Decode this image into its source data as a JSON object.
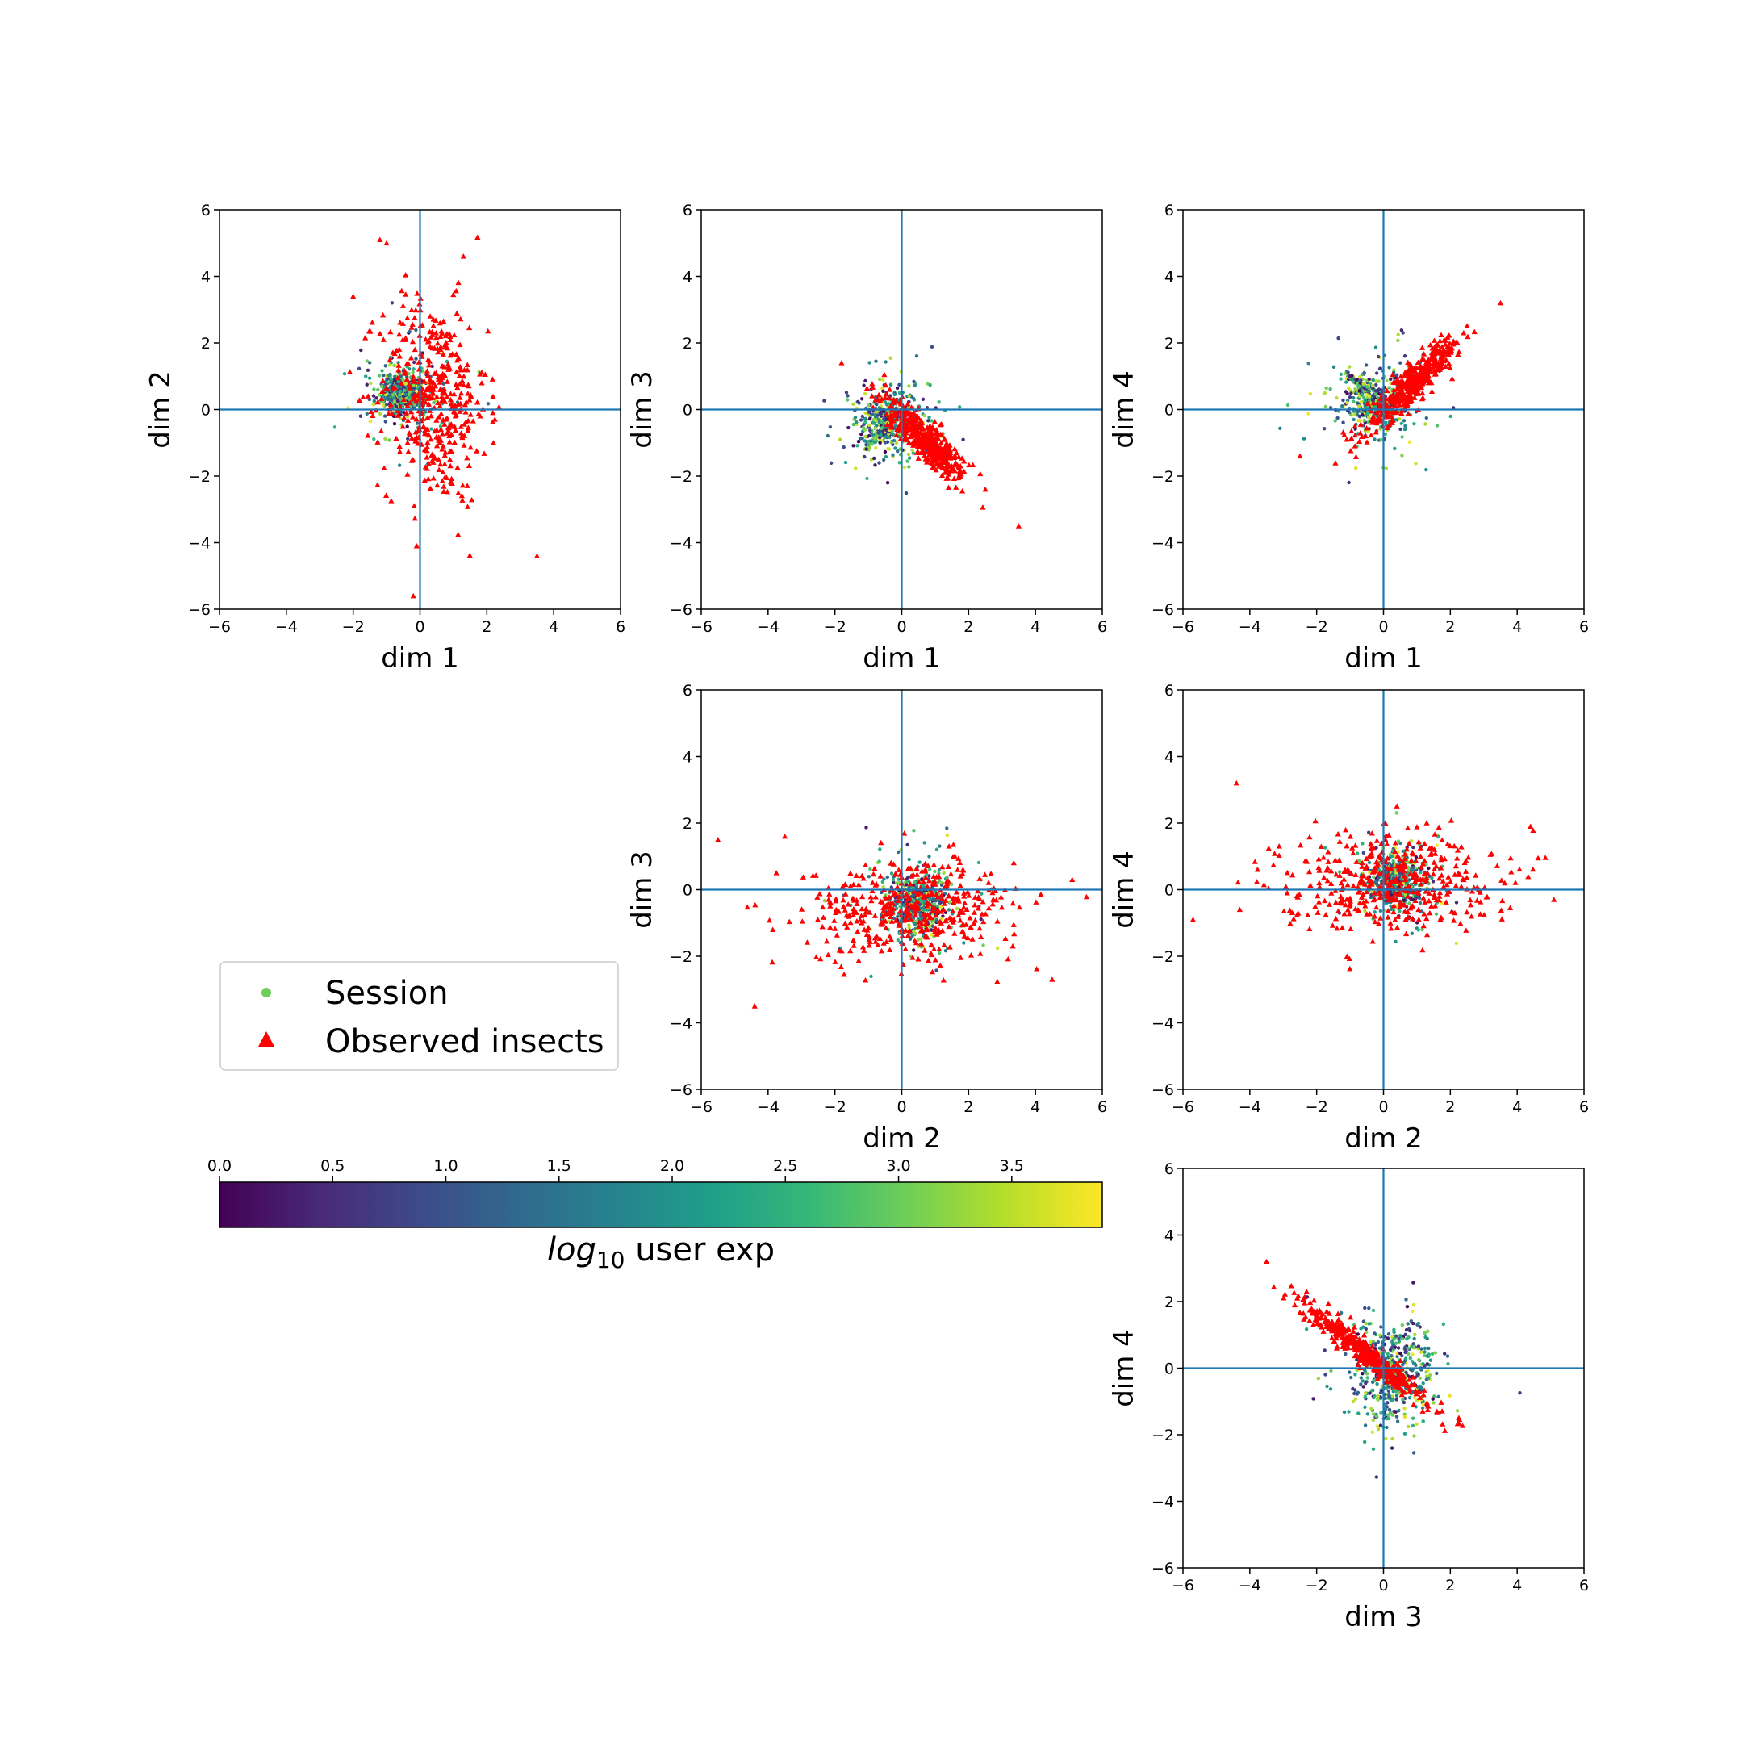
{
  "colors": {
    "zero_line": "#1f77b4",
    "observed_insects": "#ff0000",
    "viridis_stops": [
      "#440154",
      "#482878",
      "#3e4989",
      "#31688e",
      "#26828e",
      "#1f9e89",
      "#35b779",
      "#6ece58",
      "#b5de2b",
      "#fde725"
    ]
  },
  "legend": {
    "placement": "left, below top-left panel",
    "entries": [
      {
        "label": "Session",
        "marker": "circle",
        "color": "#6ece58"
      },
      {
        "label": "Observed insects",
        "marker": "triangle",
        "color": "#ff0000"
      }
    ]
  },
  "colorbar": {
    "label_math": "log",
    "label_sub": "10",
    "label_rest": " user exp",
    "ticks": [
      "0.0",
      "0.5",
      "1.0",
      "1.5",
      "2.0",
      "2.5",
      "3.0",
      "3.5"
    ],
    "range": [
      0,
      3.9
    ],
    "orientation": "horizontal"
  },
  "chart_data": [
    {
      "type": "scatter",
      "xlabel": "dim 1",
      "ylabel": "dim 2",
      "xlim": [
        -6,
        6
      ],
      "ylim": [
        -6,
        6
      ],
      "xticks": [
        "−6",
        "−4",
        "−2",
        "0",
        "2",
        "4",
        "6"
      ],
      "yticks": [
        "−6",
        "−4",
        "−2",
        "0",
        "2",
        "4",
        "6"
      ],
      "session_cluster": {
        "center": [
          -0.5,
          0.5
        ],
        "spread": [
          0.35,
          0.3
        ],
        "tail_spread": [
          0.8,
          0.9
        ]
      },
      "insects_cluster": {
        "center": [
          0.4,
          0.3
        ],
        "spread": [
          0.8,
          1.5
        ],
        "corr": -0.1
      },
      "insect_outliers": [
        [
          -1.2,
          5.1
        ],
        [
          -1.0,
          5.0
        ],
        [
          1.3,
          4.6
        ],
        [
          3.5,
          -4.4
        ],
        [
          -0.2,
          -5.6
        ],
        [
          -0.1,
          -4.1
        ],
        [
          -2.0,
          3.4
        ]
      ]
    },
    {
      "type": "scatter",
      "xlabel": "dim 1",
      "ylabel": "dim 3",
      "xlim": [
        -6,
        6
      ],
      "ylim": [
        -6,
        6
      ],
      "xticks": [
        "−6",
        "−4",
        "−2",
        "0",
        "2",
        "4",
        "6"
      ],
      "yticks": [
        "−6",
        "−4",
        "−2",
        "0",
        "2",
        "4",
        "6"
      ],
      "session_cluster": {
        "center": [
          -0.4,
          -0.3
        ],
        "spread": [
          0.45,
          0.45
        ],
        "tail_spread": [
          0.9,
          0.9
        ],
        "streak": {
          "from": [
            -1.1,
            -1.2
          ],
          "to": [
            -0.1,
            -0.1
          ]
        }
      },
      "insects_cluster": {
        "center": [
          0.7,
          -0.9
        ],
        "spread": [
          0.6,
          0.6
        ],
        "corr": -0.85
      },
      "insect_outliers": [
        [
          3.5,
          -3.5
        ],
        [
          2.5,
          -2.4
        ],
        [
          -1.8,
          1.4
        ]
      ]
    },
    {
      "type": "scatter",
      "xlabel": "dim 1",
      "ylabel": "dim 4",
      "xlim": [
        -6,
        6
      ],
      "ylim": [
        -6,
        6
      ],
      "xticks": [
        "−6",
        "−4",
        "−2",
        "0",
        "2",
        "4",
        "6"
      ],
      "yticks": [
        "−6",
        "−4",
        "−2",
        "0",
        "2",
        "4",
        "6"
      ],
      "session_cluster": {
        "center": [
          -0.3,
          0.2
        ],
        "spread": [
          0.45,
          0.45
        ],
        "tail_spread": [
          0.9,
          0.9
        ],
        "streak": {
          "from": [
            -1.1,
            1.1
          ],
          "to": [
            0.0,
            0.0
          ]
        }
      },
      "insects_cluster": {
        "center": [
          0.9,
          0.8
        ],
        "spread": [
          0.7,
          0.7
        ],
        "corr": 0.92
      },
      "insect_outliers": [
        [
          3.5,
          3.2
        ],
        [
          2.4,
          2.3
        ],
        [
          -2.5,
          -1.4
        ],
        [
          -1.1,
          -0.9
        ]
      ]
    },
    {
      "type": "scatter",
      "xlabel": "dim 2",
      "ylabel": "dim 3",
      "xlim": [
        -6,
        6
      ],
      "ylim": [
        -6,
        6
      ],
      "xticks": [
        "−6",
        "−4",
        "−2",
        "0",
        "2",
        "4",
        "6"
      ],
      "yticks": [
        "−6",
        "−4",
        "−2",
        "0",
        "2",
        "4",
        "6"
      ],
      "session_cluster": {
        "center": [
          0.5,
          -0.4
        ],
        "spread": [
          0.4,
          0.45
        ],
        "tail_spread": [
          0.9,
          0.9
        ]
      },
      "insects_cluster": {
        "center": [
          0.3,
          -0.6
        ],
        "spread": [
          1.6,
          0.75
        ],
        "corr": 0.05
      },
      "insect_outliers": [
        [
          -4.4,
          -3.5
        ],
        [
          -5.5,
          1.5
        ],
        [
          5.1,
          0.3
        ],
        [
          4.5,
          -2.7
        ],
        [
          -3.5,
          1.6
        ]
      ]
    },
    {
      "type": "scatter",
      "xlabel": "dim 2",
      "ylabel": "dim 4",
      "xlim": [
        -6,
        6
      ],
      "ylim": [
        -6,
        6
      ],
      "xticks": [
        "−6",
        "−4",
        "−2",
        "0",
        "2",
        "4",
        "6"
      ],
      "yticks": [
        "−6",
        "−4",
        "−2",
        "0",
        "2",
        "4",
        "6"
      ],
      "session_cluster": {
        "center": [
          0.4,
          0.3
        ],
        "spread": [
          0.4,
          0.4
        ],
        "tail_spread": [
          0.9,
          0.9
        ]
      },
      "insects_cluster": {
        "center": [
          0.1,
          0.3
        ],
        "spread": [
          1.6,
          0.75
        ],
        "corr": 0.05
      },
      "insect_outliers": [
        [
          -4.4,
          3.2
        ],
        [
          -5.7,
          -0.9
        ],
        [
          5.1,
          -0.3
        ],
        [
          4.4,
          1.9
        ],
        [
          -4.3,
          -0.6
        ]
      ]
    },
    {
      "type": "scatter",
      "xlabel": "dim 3",
      "ylabel": "dim 4",
      "xlim": [
        -6,
        6
      ],
      "ylim": [
        -6,
        6
      ],
      "xticks": [
        "−6",
        "−4",
        "−2",
        "0",
        "2",
        "4",
        "6"
      ],
      "yticks": [
        "−6",
        "−4",
        "−2",
        "0",
        "2",
        "4",
        "6"
      ],
      "session_cluster": {
        "center": [
          0.3,
          -0.2
        ],
        "spread": [
          0.6,
          0.8
        ],
        "tail_spread": [
          1.0,
          1.0
        ]
      },
      "insects_cluster": {
        "center": [
          -0.6,
          0.5
        ],
        "spread": [
          0.9,
          0.7
        ],
        "corr": -0.96
      },
      "insect_outliers": [
        [
          -3.5,
          3.2
        ],
        [
          -2.3,
          2.3
        ],
        [
          1.6,
          -1.3
        ],
        [
          1.2,
          -0.8
        ]
      ]
    }
  ]
}
